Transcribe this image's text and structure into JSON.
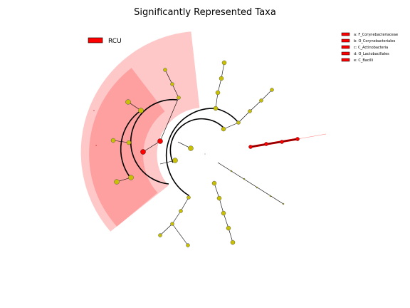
{
  "title": "Significantly Represented Taxa",
  "colors": {
    "rcu": "#ff0000",
    "node_default": "#c8c000",
    "sector_outer": "#ffc8c8",
    "sector_inner": "#ffa0a0"
  },
  "class_legend": {
    "label": "RCU"
  },
  "taxa_legend": [
    "a: F_Corynebacteriaceae",
    "b: O_Corynebacteriales",
    "c: C_Actinobacteria",
    "d: O_Lactobacillales",
    "e: C_Bacilli"
  ],
  "sector_labels": [
    "e",
    "d"
  ]
}
